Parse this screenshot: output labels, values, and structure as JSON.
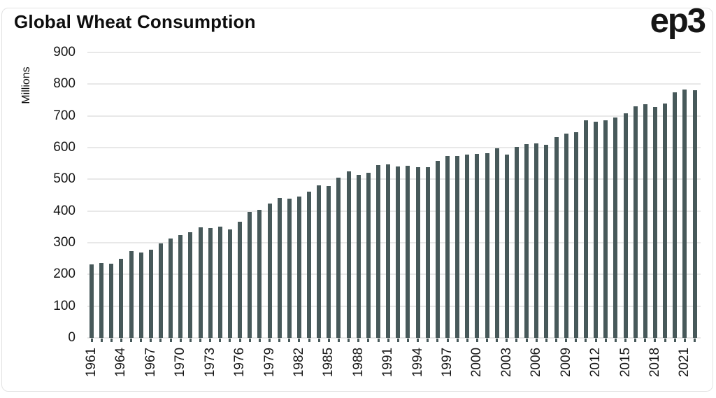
{
  "header": {
    "title": "Global Wheat Consumption",
    "logo": "ep3"
  },
  "colors": {
    "bar": "#47595a",
    "gridline": "#e8e8e8",
    "text": "#161616"
  },
  "chart_data": {
    "type": "bar",
    "title": "Global Wheat Consumption",
    "xlabel": "",
    "ylabel": "Millions",
    "ylim": [
      0,
      900
    ],
    "ytick_interval": 100,
    "yticks": [
      0,
      100,
      200,
      300,
      400,
      500,
      600,
      700,
      800,
      900
    ],
    "xtick_label_interval": 3,
    "xtick_labels": [
      "1961",
      "1964",
      "1967",
      "1970",
      "1973",
      "1976",
      "1979",
      "1982",
      "1985",
      "1988",
      "1991",
      "1994",
      "1997",
      "2000",
      "2003",
      "2006",
      "2009",
      "2012",
      "2015",
      "2018",
      "2021"
    ],
    "grid": "horizontal",
    "legend": "none",
    "categories": [
      1961,
      1962,
      1963,
      1964,
      1965,
      1966,
      1967,
      1968,
      1969,
      1970,
      1971,
      1972,
      1973,
      1974,
      1975,
      1976,
      1977,
      1978,
      1979,
      1980,
      1981,
      1982,
      1983,
      1984,
      1985,
      1986,
      1987,
      1988,
      1989,
      1990,
      1991,
      1992,
      1993,
      1994,
      1995,
      1996,
      1997,
      1998,
      1999,
      2000,
      2001,
      2002,
      2003,
      2004,
      2005,
      2006,
      2007,
      2008,
      2009,
      2010,
      2011,
      2012,
      2013,
      2014,
      2015,
      2016,
      2017,
      2018,
      2019,
      2020,
      2021,
      2022
    ],
    "values": [
      231,
      237,
      233,
      249,
      274,
      270,
      279,
      297,
      314,
      325,
      334,
      349,
      347,
      351,
      343,
      367,
      397,
      403,
      424,
      441,
      439,
      445,
      462,
      480,
      479,
      505,
      526,
      513,
      521,
      545,
      548,
      540,
      543,
      538,
      538,
      558,
      573,
      574,
      578,
      580,
      582,
      598,
      579,
      602,
      612,
      613,
      608,
      632,
      645,
      649,
      687,
      682,
      685,
      695,
      708,
      731,
      736,
      728,
      738,
      775,
      784,
      781
    ]
  }
}
